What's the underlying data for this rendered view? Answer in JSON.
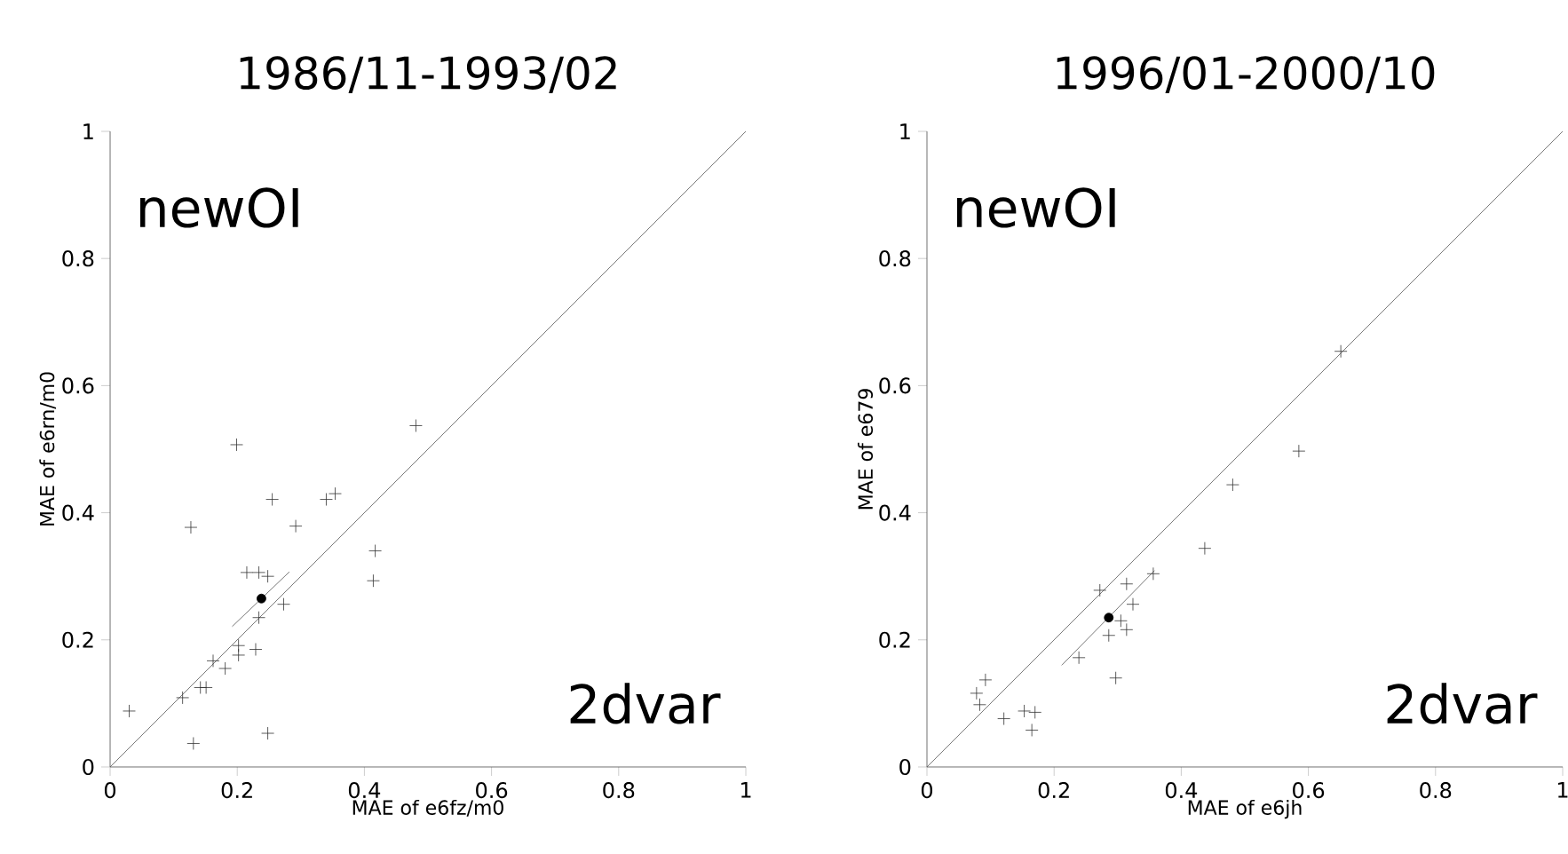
{
  "chart_data": [
    {
      "type": "scatter",
      "title": "1986/11-1993/02",
      "xlabel": "MAE of e6fz/m0",
      "ylabel": "MAE of e6rn/m0",
      "annotations": [
        "newOI",
        "2dvar"
      ],
      "xlim": [
        0,
        1
      ],
      "ylim": [
        0,
        1
      ],
      "xticks": [
        0,
        0.2,
        0.4,
        0.6,
        0.8,
        1
      ],
      "yticks": [
        0,
        0.2,
        0.4,
        0.6,
        0.8,
        1
      ],
      "series": [
        {
          "marker": "cross",
          "color": "#333333",
          "x": [
            0.03,
            0.114,
            0.131,
            0.127,
            0.142,
            0.151,
            0.162,
            0.181,
            0.202,
            0.202,
            0.199,
            0.215,
            0.234,
            0.248,
            0.229,
            0.234,
            0.255,
            0.248,
            0.273,
            0.292,
            0.34,
            0.354,
            0.417,
            0.414,
            0.481
          ],
          "values": [
            0.088,
            0.109,
            0.037,
            0.377,
            0.125,
            0.125,
            0.167,
            0.155,
            0.191,
            0.176,
            0.507,
            0.306,
            0.306,
            0.3,
            0.185,
            0.235,
            0.421,
            0.053,
            0.256,
            0.379,
            0.421,
            0.43,
            0.34,
            0.293,
            0.537
          ]
        },
        {
          "type": "scatter",
          "marker": "circle",
          "color": "#000000",
          "x": [
            0.238
          ],
          "values": [
            0.265
          ]
        },
        {
          "type": "line",
          "marker": "none",
          "color": "#555555",
          "x": [
            0,
            1
          ],
          "values": [
            0,
            1
          ]
        },
        {
          "type": "line",
          "marker": "none",
          "color": "#555555",
          "x": [
            0.192,
            0.282
          ],
          "values": [
            0.221,
            0.307
          ]
        }
      ]
    },
    {
      "type": "scatter",
      "title": "1996/01-2000/10",
      "xlabel": "MAE of e6jh",
      "ylabel": "MAE of e679",
      "annotations": [
        "newOI",
        "2dvar"
      ],
      "xlim": [
        0,
        1
      ],
      "ylim": [
        0,
        1
      ],
      "xticks": [
        0,
        0.2,
        0.4,
        0.6,
        0.8,
        1
      ],
      "yticks": [
        0,
        0.2,
        0.4,
        0.6,
        0.8,
        1
      ],
      "series": [
        {
          "marker": "cross",
          "color": "#333333",
          "x": [
            0.651,
            0.585,
            0.481,
            0.437,
            0.356,
            0.272,
            0.314,
            0.324,
            0.305,
            0.314,
            0.286,
            0.239,
            0.297,
            0.092,
            0.078,
            0.083,
            0.121,
            0.153,
            0.17,
            0.165
          ],
          "values": [
            0.654,
            0.497,
            0.444,
            0.344,
            0.304,
            0.278,
            0.288,
            0.256,
            0.23,
            0.216,
            0.207,
            0.172,
            0.14,
            0.137,
            0.116,
            0.098,
            0.076,
            0.088,
            0.086,
            0.058
          ]
        },
        {
          "type": "scatter",
          "marker": "circle",
          "color": "#000000",
          "x": [
            0.286
          ],
          "values": [
            0.235
          ]
        },
        {
          "type": "line",
          "marker": "none",
          "color": "#555555",
          "x": [
            0,
            1
          ],
          "values": [
            0,
            1
          ]
        },
        {
          "type": "line",
          "marker": "none",
          "color": "#555555",
          "x": [
            0.212,
            0.358
          ],
          "values": [
            0.16,
            0.309
          ]
        }
      ]
    }
  ]
}
